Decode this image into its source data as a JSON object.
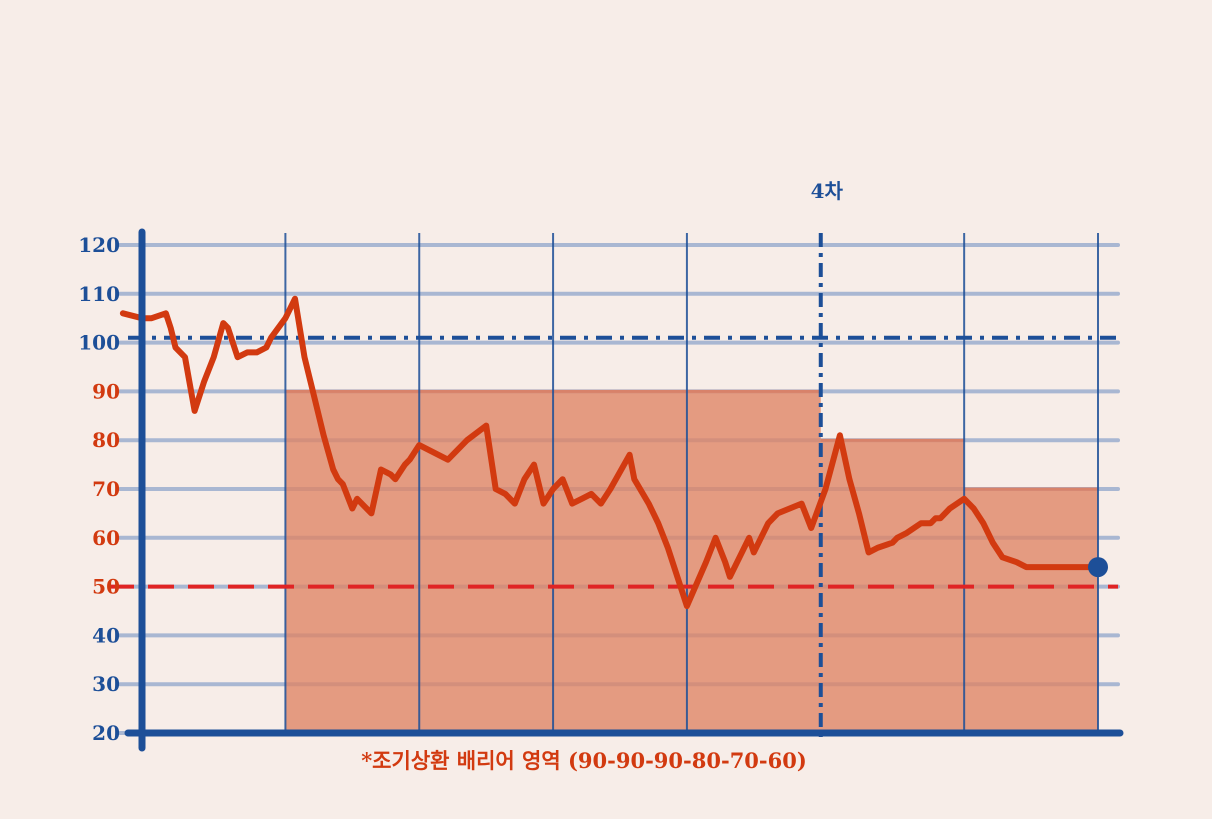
{
  "chart_data": {
    "type": "line",
    "title": "",
    "xlabel": "",
    "ylabel": "",
    "ylim": [
      20,
      120
    ],
    "xlim": [
      0,
      1
    ],
    "y_ticks": [
      {
        "value": 20,
        "color": "blue"
      },
      {
        "value": 30,
        "color": "blue"
      },
      {
        "value": 40,
        "color": "blue"
      },
      {
        "value": 50,
        "color": "red"
      },
      {
        "value": 60,
        "color": "red"
      },
      {
        "value": 70,
        "color": "red"
      },
      {
        "value": 80,
        "color": "red"
      },
      {
        "value": 90,
        "color": "red"
      },
      {
        "value": 100,
        "color": "blue"
      },
      {
        "value": 110,
        "color": "blue"
      },
      {
        "value": 120,
        "color": "blue"
      }
    ],
    "grid": true,
    "observation_dates": [
      0.15,
      0.29,
      0.43,
      0.57,
      0.71,
      0.86,
      1.0
    ],
    "highlight_observation": {
      "index": 4,
      "label": "4차"
    },
    "reference_lines": [
      {
        "name": "initial-level",
        "value": 101,
        "style": "dash-dot",
        "color": "#1d4f98"
      },
      {
        "name": "knock-in-barrier",
        "value": 50,
        "style": "dashed",
        "color": "#e02424"
      }
    ],
    "barrier_zones": [
      {
        "x0": 0.15,
        "x1": 0.57,
        "value": 90
      },
      {
        "x0": 0.57,
        "x1": 0.71,
        "value": 90
      },
      {
        "x0": 0.71,
        "x1": 0.86,
        "value": 80
      },
      {
        "x0": 0.86,
        "x1": 1.0,
        "value": 70
      },
      {
        "x0": 1.0,
        "x1": 1.0,
        "value": 60
      }
    ],
    "barrier_caption": "*조기상환 배리어 영역 (90-90-90-80-70-60)",
    "series": [
      {
        "color": "#d23a10",
        "x": [
          -0.02,
          0.0,
          0.01,
          0.025,
          0.03,
          0.035,
          0.045,
          0.055,
          0.065,
          0.075,
          0.085,
          0.09,
          0.1,
          0.11,
          0.12,
          0.13,
          0.135,
          0.15,
          0.16,
          0.17,
          0.175,
          0.18,
          0.19,
          0.2,
          0.205,
          0.21,
          0.22,
          0.225,
          0.24,
          0.25,
          0.26,
          0.265,
          0.275,
          0.28,
          0.29,
          0.32,
          0.34,
          0.36,
          0.37,
          0.38,
          0.39,
          0.4,
          0.41,
          0.42,
          0.43,
          0.44,
          0.45,
          0.46,
          0.47,
          0.48,
          0.49,
          0.51,
          0.515,
          0.53,
          0.54,
          0.55,
          0.57,
          0.59,
          0.6,
          0.61,
          0.615,
          0.635,
          0.64,
          0.655,
          0.665,
          0.69,
          0.7,
          0.715,
          0.73,
          0.74,
          0.75,
          0.76,
          0.77,
          0.785,
          0.79,
          0.8,
          0.815,
          0.82,
          0.825,
          0.83,
          0.835,
          0.845,
          0.86,
          0.87,
          0.88,
          0.89,
          0.9,
          0.915,
          0.925,
          0.93,
          0.935,
          0.945,
          0.96,
          0.975,
          0.985,
          1.0
        ],
        "y": [
          106,
          105,
          105,
          106,
          103,
          99,
          97,
          86,
          92,
          97,
          104,
          103,
          97,
          98,
          98,
          99,
          101,
          105,
          109,
          97,
          93,
          89,
          81,
          74,
          72,
          71,
          66,
          68,
          65,
          74,
          73,
          72,
          75,
          76,
          79,
          76,
          80,
          83,
          70,
          69,
          67,
          72,
          75,
          67,
          70,
          72,
          67,
          68,
          69,
          67,
          70,
          77,
          72,
          67,
          63,
          58,
          46,
          55,
          60,
          55,
          52,
          60,
          57,
          63,
          65,
          67,
          62,
          70,
          81,
          72,
          65,
          57,
          58,
          59,
          60,
          61,
          63,
          63,
          63,
          64,
          64,
          66,
          68,
          66,
          63,
          59,
          56,
          55,
          54,
          54,
          54,
          54,
          54,
          54,
          54,
          54
        ]
      }
    ],
    "end_point": {
      "x": 1.0,
      "y": 54
    }
  }
}
